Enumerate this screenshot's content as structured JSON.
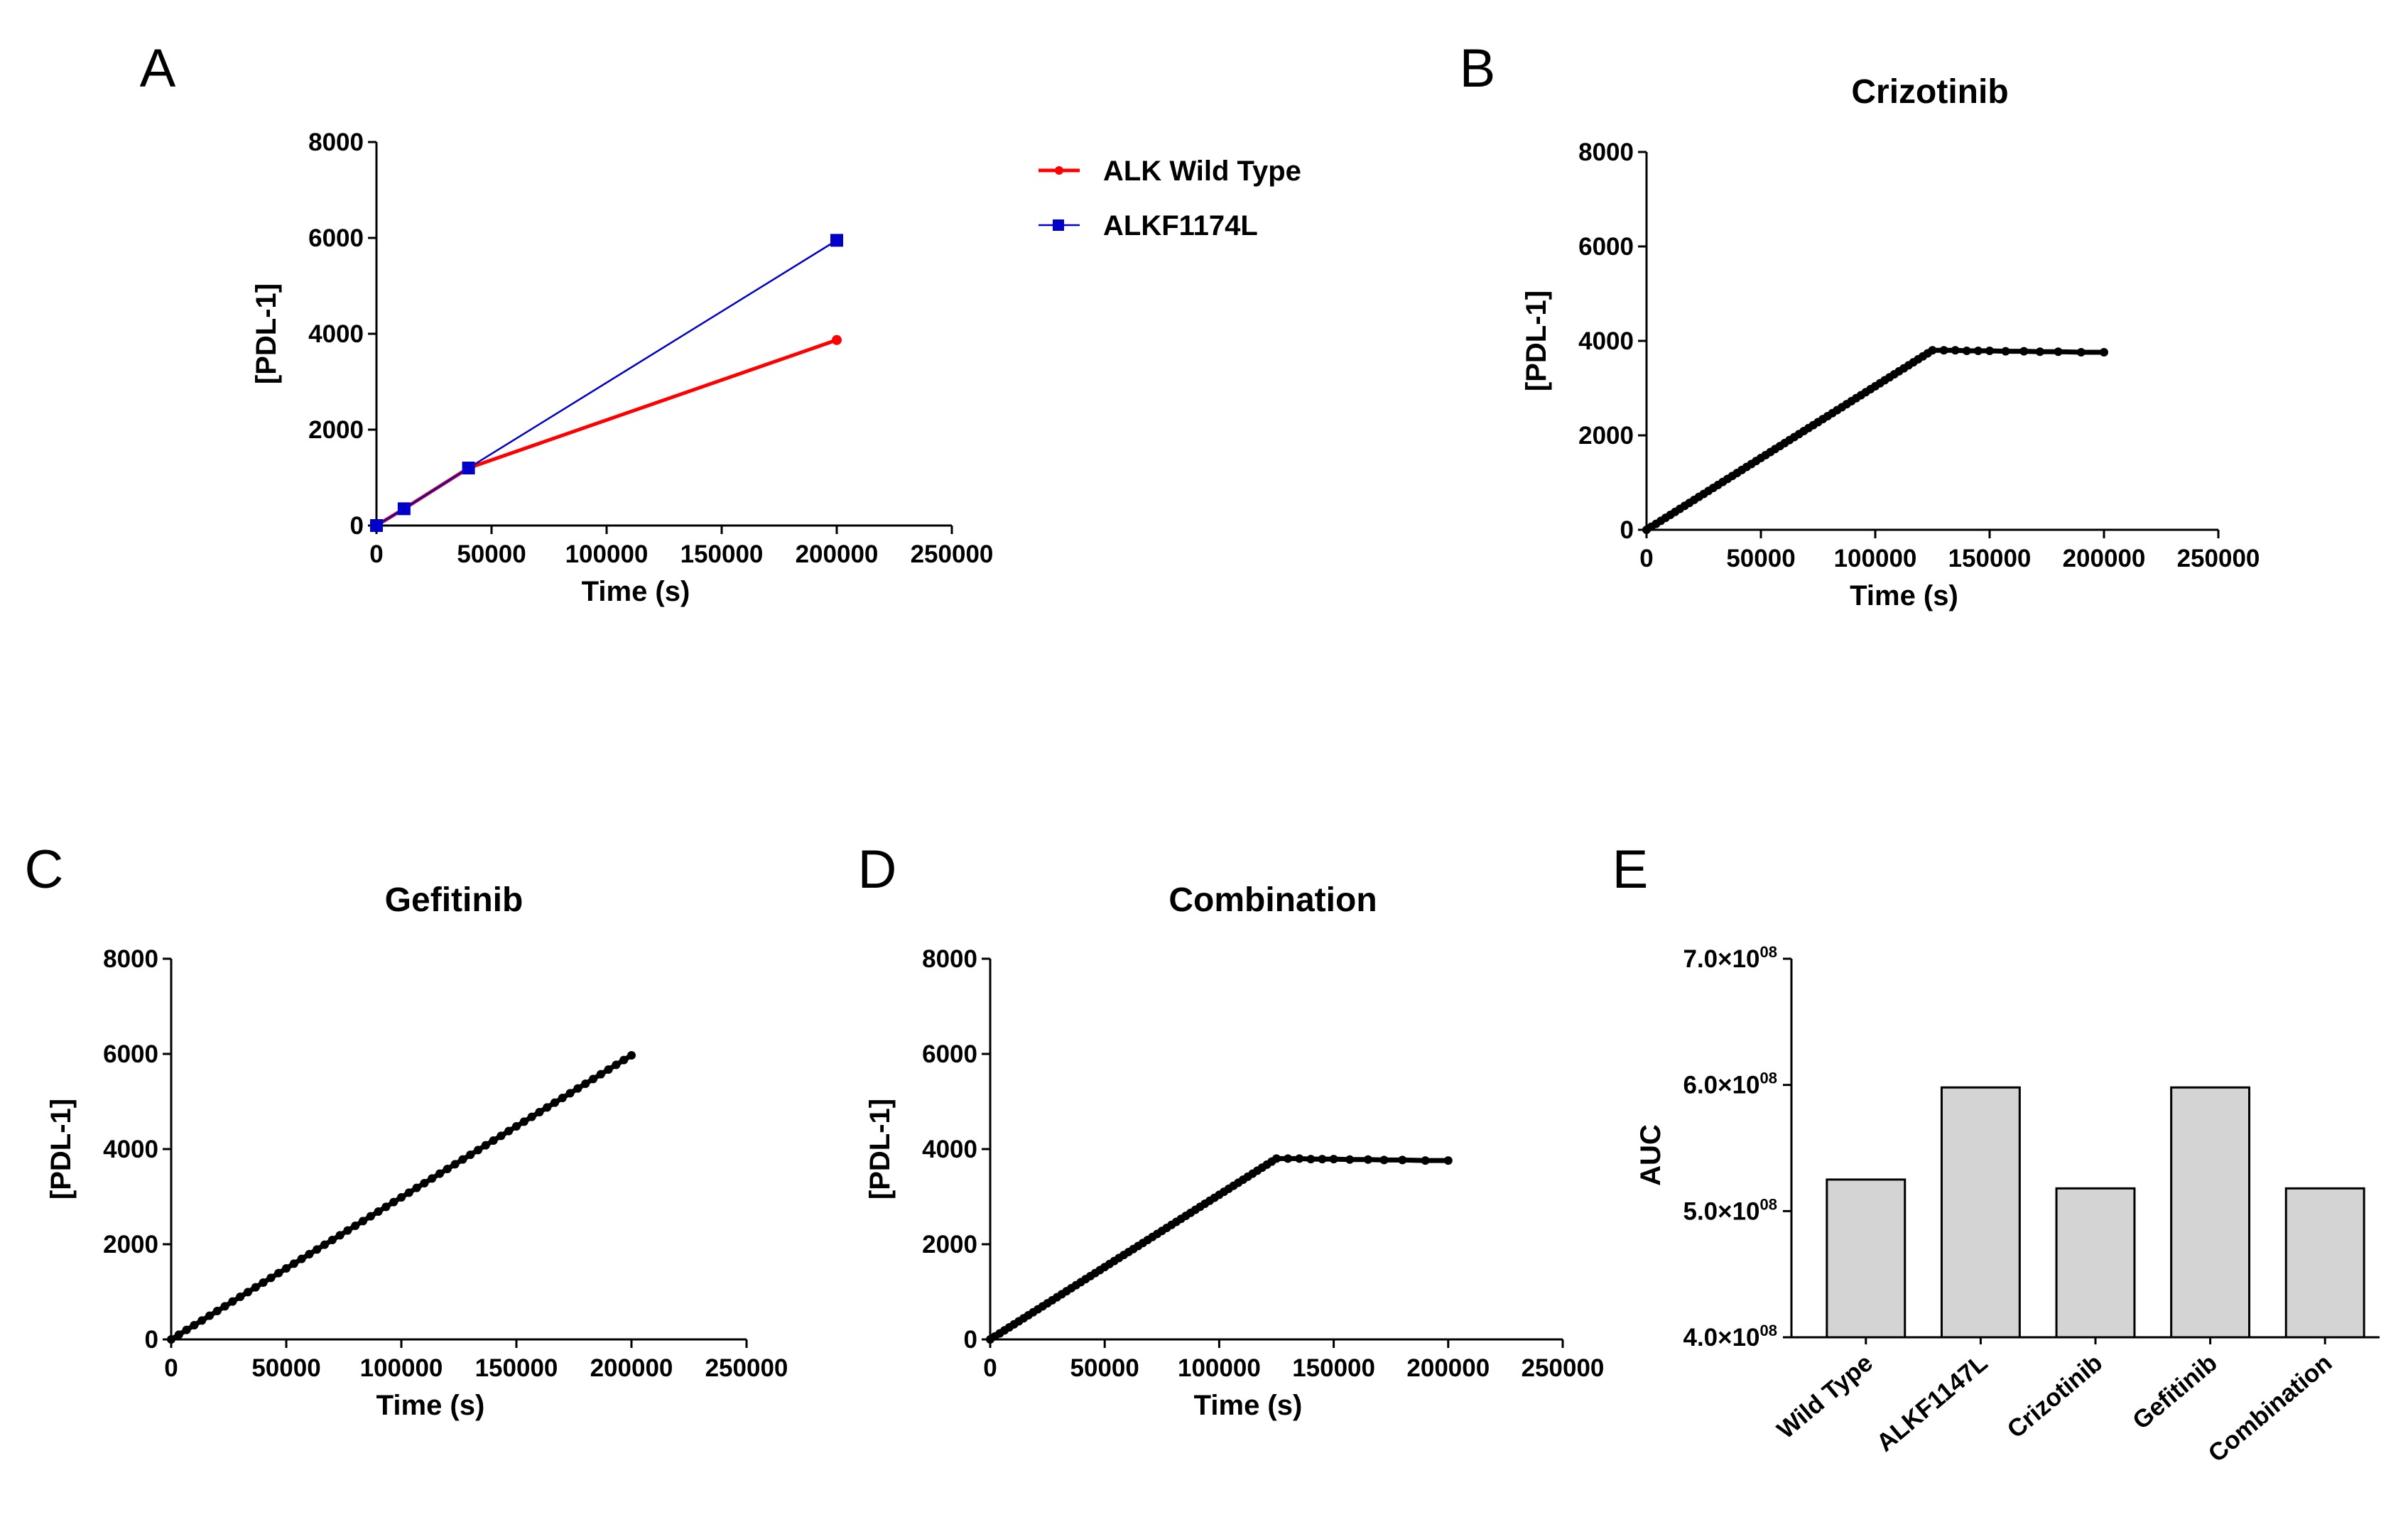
{
  "chart_data": [
    {
      "id": "A",
      "panel_letter": "A",
      "type": "line",
      "title": "",
      "xlabel": "Time (s)",
      "ylabel": "[PDL-1]",
      "xlim": [
        0,
        250000
      ],
      "ylim": [
        0,
        8000
      ],
      "x_ticks": [
        "0",
        "50000",
        "100000",
        "150000",
        "200000",
        "250000"
      ],
      "y_ticks": [
        "0",
        "2000",
        "4000",
        "6000",
        "8000"
      ],
      "legend_position": "right",
      "series": [
        {
          "name": "ALK Wild Type",
          "color": "#ff0000",
          "marker": "circle",
          "x": [
            0,
            12000,
            40000,
            200000
          ],
          "y": [
            0,
            350,
            1200,
            3870
          ]
        },
        {
          "name": "ALKF1174L",
          "color": "#0000c8",
          "marker": "square",
          "x": [
            0,
            12000,
            40000,
            200000
          ],
          "y": [
            0,
            350,
            1200,
            5950
          ]
        }
      ]
    },
    {
      "id": "B",
      "panel_letter": "B",
      "type": "scatter",
      "title": "Crizotinib",
      "xlabel": "Time (s)",
      "ylabel": "[PDL-1]",
      "xlim": [
        0,
        250000
      ],
      "ylim": [
        0,
        8000
      ],
      "x_ticks": [
        "0",
        "50000",
        "100000",
        "150000",
        "200000",
        "250000"
      ],
      "y_ticks": [
        "0",
        "2000",
        "4000",
        "6000",
        "8000"
      ],
      "series": [
        {
          "name": "Crizotinib",
          "color": "#000000",
          "x": [
            0,
            125000,
            130000,
            135000,
            140000,
            145000,
            150000,
            157000,
            165000,
            172000,
            180000,
            190000,
            200000
          ],
          "y": [
            0,
            3800,
            3800,
            3800,
            3790,
            3790,
            3790,
            3780,
            3780,
            3770,
            3770,
            3760,
            3760
          ]
        }
      ]
    },
    {
      "id": "C",
      "panel_letter": "C",
      "type": "scatter",
      "title": "Gefitinib",
      "xlabel": "Time (s)",
      "ylabel": "[PDL-1]",
      "xlim": [
        0,
        250000
      ],
      "ylim": [
        0,
        8000
      ],
      "x_ticks": [
        "0",
        "50000",
        "100000",
        "150000",
        "200000",
        "250000"
      ],
      "y_ticks": [
        "0",
        "2000",
        "4000",
        "6000",
        "8000"
      ],
      "series": [
        {
          "name": "Gefitinib",
          "color": "#000000",
          "x": [
            0,
            200000
          ],
          "y": [
            0,
            5970
          ]
        }
      ]
    },
    {
      "id": "D",
      "panel_letter": "D",
      "type": "scatter",
      "title": "Combination",
      "xlabel": "Time (s)",
      "ylabel": "[PDL-1]",
      "xlim": [
        0,
        250000
      ],
      "ylim": [
        0,
        8000
      ],
      "x_ticks": [
        "0",
        "50000",
        "100000",
        "150000",
        "200000",
        "250000"
      ],
      "y_ticks": [
        "0",
        "2000",
        "4000",
        "6000",
        "8000"
      ],
      "series": [
        {
          "name": "Combination",
          "color": "#000000",
          "x": [
            0,
            125000,
            130000,
            135000,
            140000,
            145000,
            150000,
            157000,
            165000,
            172000,
            180000,
            190000,
            200000
          ],
          "y": [
            0,
            3800,
            3800,
            3800,
            3790,
            3790,
            3790,
            3780,
            3780,
            3770,
            3770,
            3760,
            3760
          ]
        }
      ]
    },
    {
      "id": "E",
      "panel_letter": "E",
      "type": "bar",
      "title": "",
      "xlabel": "",
      "ylabel": "AUC",
      "ylim": [
        400000000,
        700000000
      ],
      "y_ticks": [
        {
          "mantissa": "4.0×10",
          "exp": "08"
        },
        {
          "mantissa": "5.0×10",
          "exp": "08"
        },
        {
          "mantissa": "6.0×10",
          "exp": "08"
        },
        {
          "mantissa": "7.0×10",
          "exp": "08"
        }
      ],
      "categories": [
        "Wild Type",
        "ALKF1147L",
        "Crizotinib",
        "Gefitinib",
        "Combination"
      ],
      "values": [
        525000000,
        598000000,
        518000000,
        598000000,
        518000000
      ],
      "bar_color": "#d4d4d4"
    }
  ]
}
